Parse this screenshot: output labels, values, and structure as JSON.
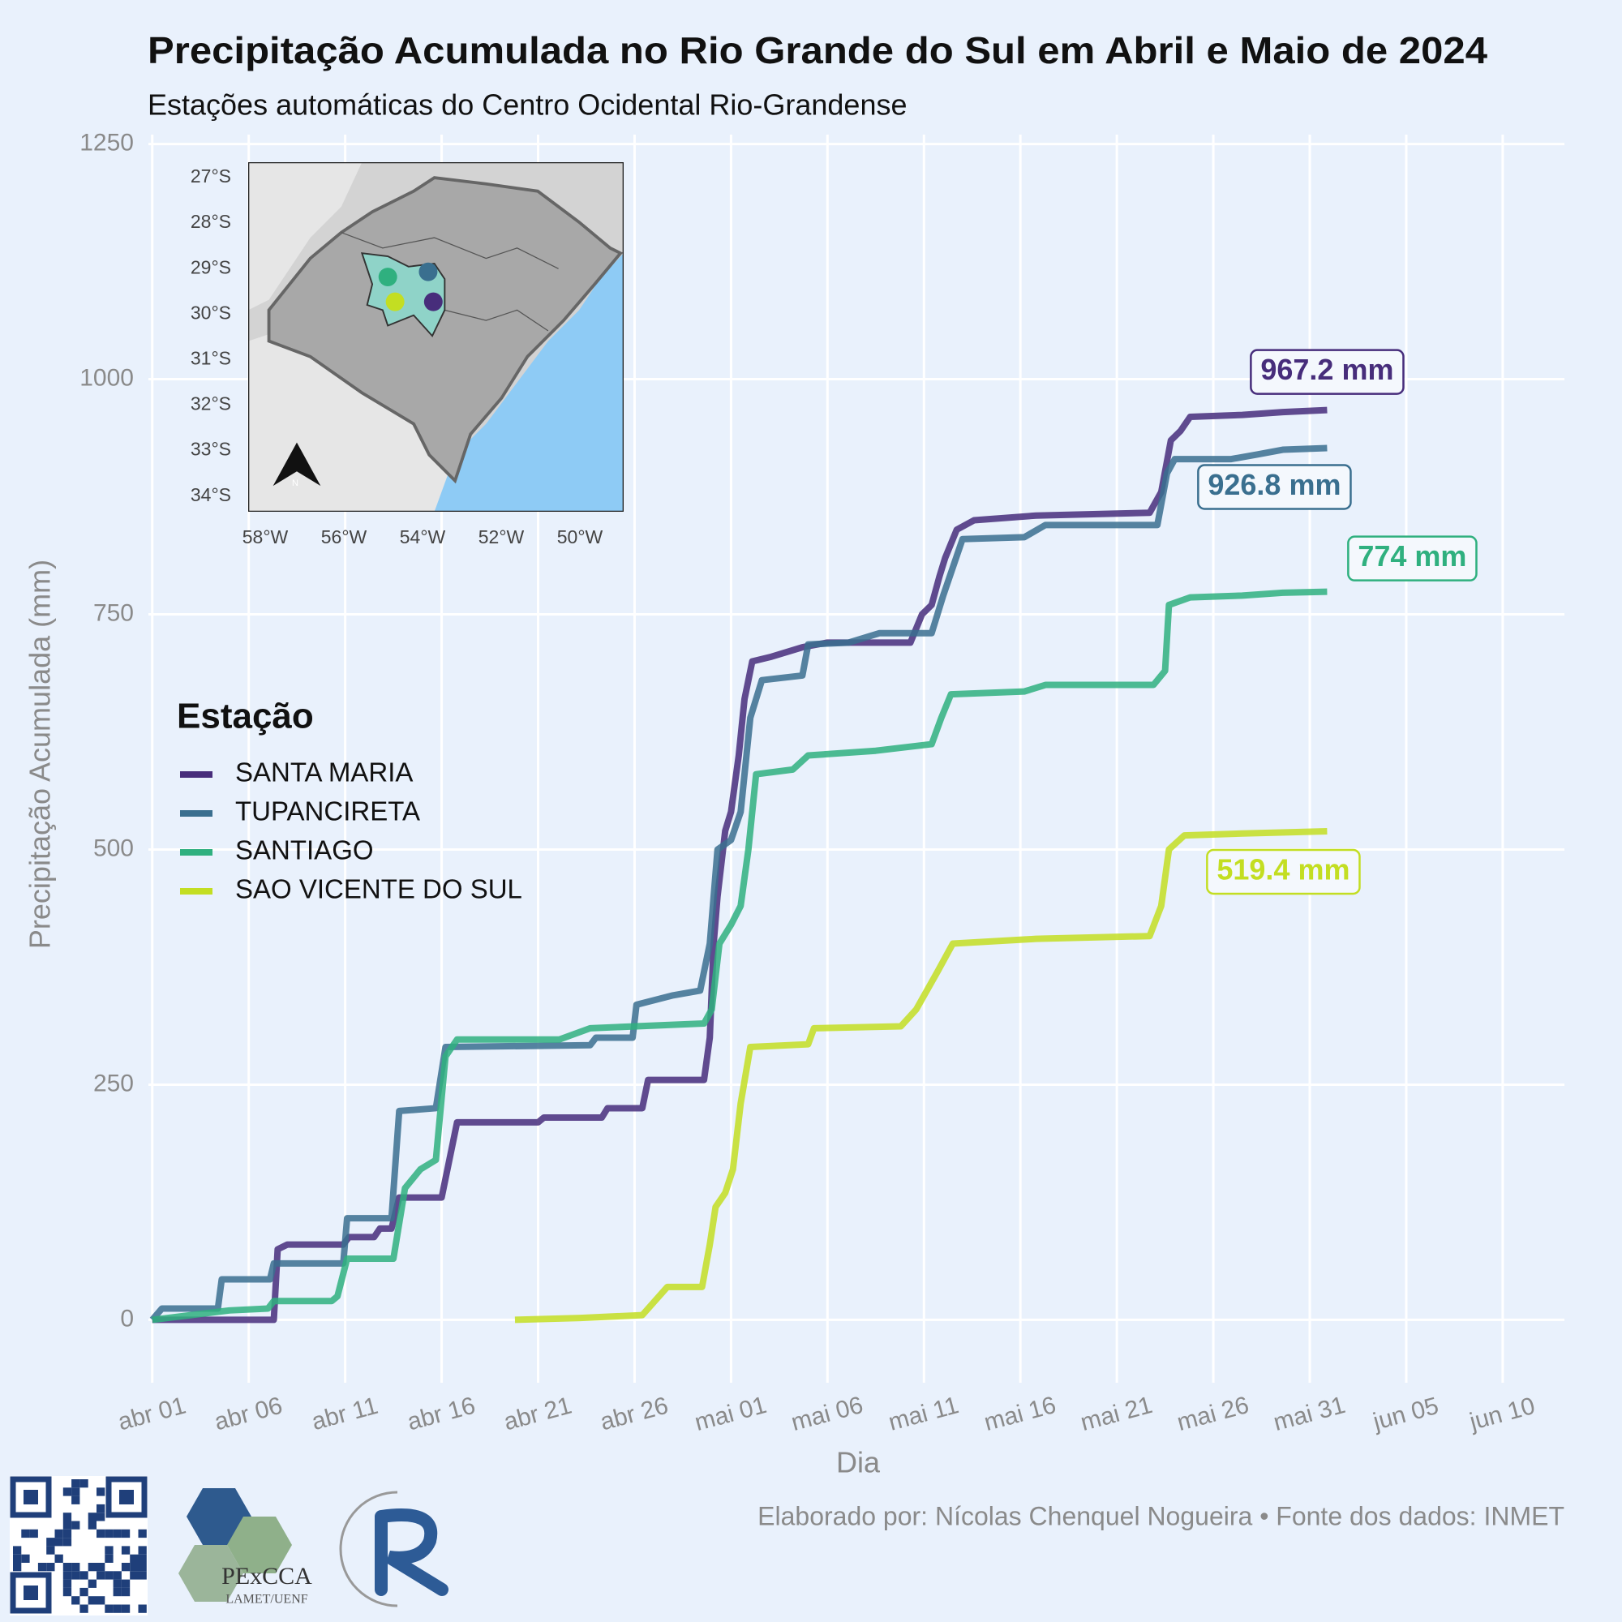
{
  "chart_data": {
    "type": "line",
    "title": "Precipitação Acumulada no Rio Grande do Sul em Abril e Maio de 2024",
    "subtitle": "Estações automáticas do Centro Ocidental Rio-Grandense",
    "x_label": "Dia",
    "y_label": "Precipitação Acumulada (mm)",
    "legend_title": "Estação",
    "legend_position": "left",
    "grid": true,
    "xlim": [
      -0.2,
      73.2
    ],
    "ylim": [
      -60,
      1260
    ],
    "xticks": [
      {
        "value": 0,
        "label": "abr 01"
      },
      {
        "value": 5,
        "label": "abr 06"
      },
      {
        "value": 10,
        "label": "abr 11"
      },
      {
        "value": 15,
        "label": "abr 16"
      },
      {
        "value": 20,
        "label": "abr 21"
      },
      {
        "value": 25,
        "label": "abr 26"
      },
      {
        "value": 30,
        "label": "mai 01"
      },
      {
        "value": 35,
        "label": "mai 06"
      },
      {
        "value": 40,
        "label": "mai 11"
      },
      {
        "value": 45,
        "label": "mai 16"
      },
      {
        "value": 50,
        "label": "mai 21"
      },
      {
        "value": 55,
        "label": "mai 26"
      },
      {
        "value": 60,
        "label": "mai 31"
      },
      {
        "value": 65,
        "label": "jun 05"
      },
      {
        "value": 70,
        "label": "jun 10"
      }
    ],
    "yticks": [
      0,
      250,
      500,
      750,
      1000,
      1250
    ],
    "series": [
      {
        "name": "SANTA MARIA",
        "color": "#472d7b",
        "x": [
          0,
          6.3,
          6.5,
          7,
          9.9,
          10.2,
          11.5,
          11.8,
          12.4,
          12.8,
          15,
          15.8,
          20,
          20.3,
          23.3,
          23.6,
          25.4,
          25.7,
          28.6,
          28.9,
          29.1,
          29.3,
          29.7,
          30,
          30.4,
          30.7,
          31.1,
          32.1,
          33.7,
          35,
          39.3,
          39.9,
          40.4,
          40.8,
          41.1,
          41.7,
          42.6,
          45.8,
          51.7,
          52.3,
          52.8,
          53.3,
          53.8,
          56.5,
          58.6,
          60.9
        ],
        "values": [
          0,
          0,
          75,
          80,
          80,
          88,
          88,
          97,
          97,
          130,
          130,
          210,
          210,
          215,
          215,
          225,
          225,
          255,
          255,
          300,
          400,
          450,
          520,
          540,
          600,
          660,
          700,
          705,
          715,
          720,
          720,
          750,
          760,
          790,
          810,
          840,
          850,
          855,
          858,
          880,
          935,
          945,
          960,
          962,
          965,
          967.2
        ],
        "value_labels": [
          null,
          null,
          null,
          null,
          null,
          null,
          null,
          null,
          null,
          null,
          null,
          null,
          null,
          null,
          null,
          null,
          null,
          null,
          null,
          null,
          null,
          null,
          null,
          null,
          null,
          null,
          null,
          null,
          null,
          null,
          null,
          null,
          null,
          null,
          null,
          null,
          null,
          null,
          null,
          null,
          null,
          null,
          null,
          null,
          null,
          "967.2 mm"
        ]
      },
      {
        "name": "TUPANCIRETA",
        "color": "#3a6f8f",
        "x": [
          0,
          0.5,
          3.4,
          3.6,
          6.1,
          6.3,
          9.9,
          10.1,
          12.4,
          12.8,
          14.7,
          15.2,
          22.7,
          23,
          24.9,
          25.1,
          27,
          28.4,
          28.9,
          29.3,
          30,
          30.5,
          31,
          31.6,
          33.7,
          34,
          36.1,
          37.7,
          40.4,
          41,
          42,
          45.2,
          46.3,
          52.1,
          52.6,
          53,
          55.9,
          57.3,
          58.6,
          60.9
        ],
        "values": [
          0,
          12,
          12,
          43,
          43,
          60,
          60,
          108,
          108,
          222,
          225,
          290,
          292,
          300,
          300,
          335,
          345,
          350,
          400,
          500,
          510,
          540,
          640,
          680,
          685,
          718,
          720,
          730,
          730,
          770,
          830,
          832,
          845,
          845,
          900,
          915,
          915,
          920,
          925,
          926.8
        ],
        "value_labels": [
          null,
          null,
          null,
          null,
          null,
          null,
          null,
          null,
          null,
          null,
          null,
          null,
          null,
          null,
          null,
          null,
          null,
          null,
          null,
          null,
          null,
          null,
          null,
          null,
          null,
          null,
          null,
          null,
          null,
          null,
          null,
          null,
          null,
          null,
          null,
          null,
          null,
          null,
          null,
          "926.8 mm"
        ]
      },
      {
        "name": "SANTIAGO",
        "color": "#2fb07f",
        "x": [
          0,
          2,
          4,
          6,
          6.3,
          9.3,
          9.6,
          10.1,
          12.5,
          13.1,
          13.9,
          14.7,
          15.2,
          15.8,
          21.1,
          22.7,
          28.6,
          29,
          29.4,
          30,
          30.5,
          30.9,
          31.3,
          33.2,
          34,
          37.5,
          40.4,
          40.9,
          41.4,
          45.2,
          46.3,
          51.9,
          52.5,
          52.7,
          53.8,
          56.5,
          58.6,
          60.9
        ],
        "values": [
          0,
          5,
          10,
          12,
          20,
          20,
          25,
          65,
          65,
          140,
          160,
          170,
          280,
          298,
          298,
          310,
          315,
          330,
          400,
          420,
          440,
          500,
          580,
          585,
          600,
          605,
          612,
          640,
          665,
          668,
          675,
          675,
          690,
          760,
          768,
          770,
          773,
          774
        ],
        "value_labels": [
          null,
          null,
          null,
          null,
          null,
          null,
          null,
          null,
          null,
          null,
          null,
          null,
          null,
          null,
          null,
          null,
          null,
          null,
          null,
          null,
          null,
          null,
          null,
          null,
          null,
          null,
          null,
          null,
          null,
          null,
          null,
          null,
          null,
          null,
          null,
          null,
          null,
          "774 mm"
        ]
      },
      {
        "name": "SAO VICENTE DO SUL",
        "color": "#c3de22",
        "x": [
          18.8,
          22.2,
          25.4,
          26.7,
          28.5,
          28.9,
          29.2,
          29.7,
          30.1,
          30.5,
          31,
          34,
          34.3,
          38.8,
          39.6,
          40.7,
          41.5,
          45.8,
          51.7,
          52.3,
          52.7,
          53.5,
          56.5,
          60.9
        ],
        "values": [
          0,
          2,
          5,
          35,
          35,
          80,
          120,
          135,
          160,
          230,
          290,
          293,
          310,
          312,
          330,
          370,
          400,
          405,
          408,
          440,
          500,
          515,
          517,
          519.4
        ],
        "value_labels": [
          null,
          null,
          null,
          null,
          null,
          null,
          null,
          null,
          null,
          null,
          null,
          null,
          null,
          null,
          null,
          null,
          null,
          null,
          null,
          null,
          null,
          null,
          null,
          "519.4 mm"
        ]
      }
    ],
    "inset_map": {
      "lat_labels": [
        "27°S",
        "28°S",
        "29°S",
        "30°S",
        "31°S",
        "32°S",
        "33°S",
        "34°S"
      ],
      "lon_labels": [
        "58°W",
        "56°W",
        "54°W",
        "52°W",
        "50°W"
      ],
      "north_label": "N"
    },
    "credit": "Elaborado por: Nícolas Chenquel Nogueira • Fonte dos dados: INMET",
    "logo_text": [
      "PExCCA",
      "LAMET/UENF"
    ]
  }
}
